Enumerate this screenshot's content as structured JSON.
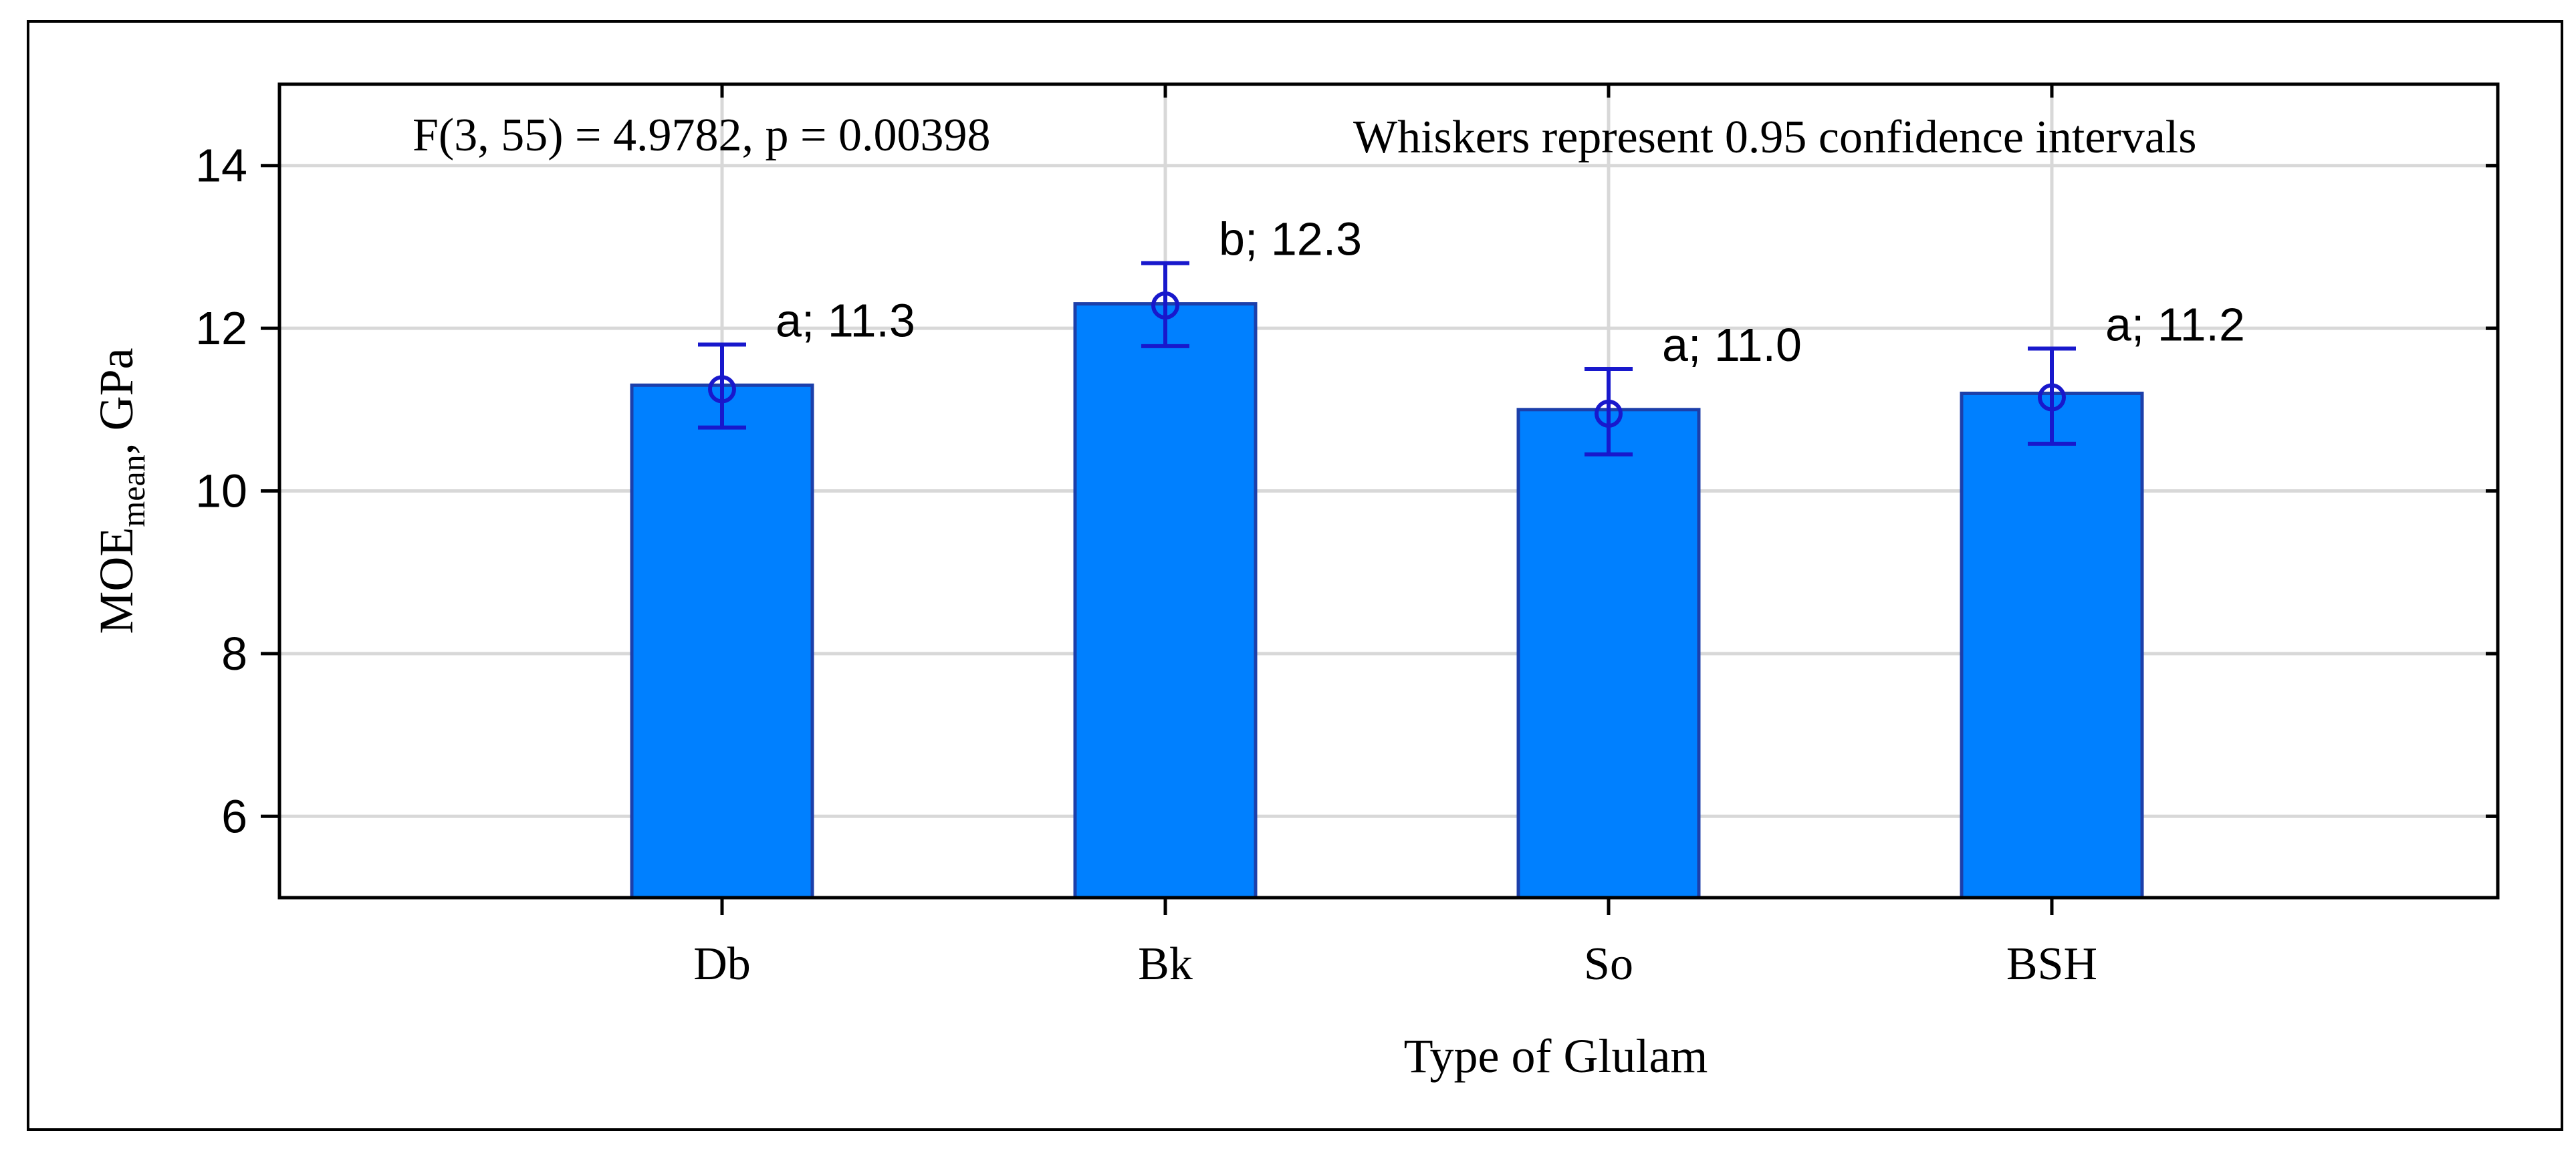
{
  "chart_data": {
    "type": "bar",
    "title": "",
    "annotation_left": "F(3, 55) = 4.9782, p = 0.00398",
    "annotation_right": "Whiskers represent 0.95 confidence intervals",
    "xlabel": "Type of Glulam",
    "ylabel": {
      "main": "MOE",
      "sub": "mean",
      "suffix": ", GPa"
    },
    "categories": [
      "Db",
      "Bk",
      "So",
      "BSH"
    ],
    "values": [
      11.3,
      12.3,
      11.0,
      11.2
    ],
    "markers": [
      11.25,
      12.28,
      10.95,
      11.15
    ],
    "ci_low": [
      10.78,
      11.78,
      10.45,
      10.58
    ],
    "ci_high": [
      11.8,
      12.8,
      11.5,
      11.75
    ],
    "data_labels": [
      "a; 11.3",
      "b; 12.3",
      "a; 11.0",
      "a; 11.2"
    ],
    "ylim": [
      5,
      15
    ],
    "yticks": [
      6,
      8,
      10,
      12,
      14
    ],
    "grid": true,
    "colors": {
      "bar_fill": "#0080FF",
      "bar_stroke": "#1C3FAA",
      "whisker": "#1818CC",
      "grid": "#D8D8D8",
      "axis": "#000000"
    }
  }
}
